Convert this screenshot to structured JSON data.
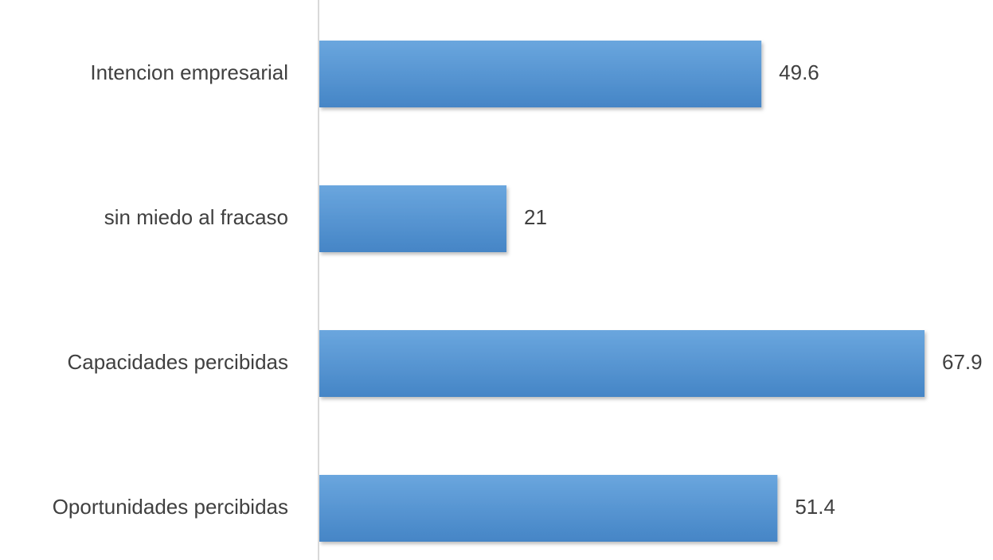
{
  "chart_data": {
    "type": "bar",
    "orientation": "horizontal",
    "title": "",
    "xlabel": "",
    "ylabel": "",
    "categories": [
      "Intencion empresarial",
      "sin miedo al fracaso",
      "Capacidades percibidas",
      "Oportunidades percibidas"
    ],
    "values": [
      49.6,
      21,
      67.9,
      51.4
    ],
    "value_labels": [
      "49.6",
      "21",
      "67.9",
      "51.4"
    ],
    "xlim": [
      0,
      70
    ],
    "grid": false,
    "legend": "none",
    "bar_color": "#5b9bd5",
    "bar_color_dark": "#4a86c5",
    "axis_color": "#d9d9d9",
    "text_color": "#404040"
  }
}
